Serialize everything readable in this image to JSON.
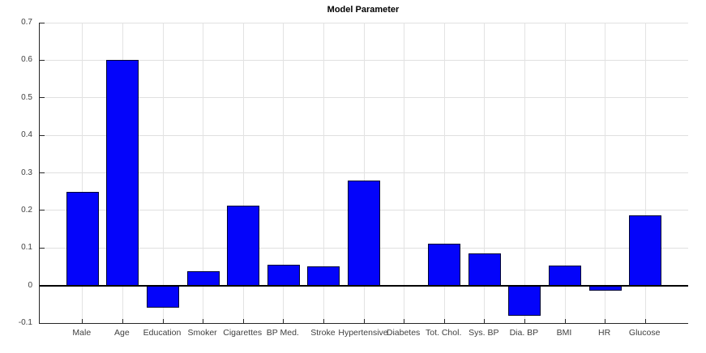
{
  "figure": {
    "background_color": "#ffffff"
  },
  "chart_data": {
    "type": "bar",
    "title": "Model Parameter",
    "xlabel": "",
    "ylabel": "",
    "categories": [
      "Male",
      "Age",
      "Education",
      "Smoker",
      "Cigarettes",
      "BP Med.",
      "Stroke",
      "Hypertensive",
      "Diabetes",
      "Tot. Chol.",
      "Sys. BP",
      "Dia. BP",
      "BMI",
      "HR",
      "Glucose"
    ],
    "values": [
      0.25,
      0.6,
      -0.06,
      0.037,
      0.212,
      0.055,
      0.052,
      0.28,
      0,
      0.111,
      0.085,
      -0.08,
      0.054,
      -0.013,
      0.187
    ],
    "ylim": [
      -0.1,
      0.7
    ],
    "yticks": [
      {
        "value": -0.1,
        "label": "-0.1"
      },
      {
        "value": 0,
        "label": "0"
      },
      {
        "value": 0.1,
        "label": "0.1"
      },
      {
        "value": 0.2,
        "label": "0.2"
      },
      {
        "value": 0.3,
        "label": "0.3"
      },
      {
        "value": 0.4,
        "label": "0.4"
      },
      {
        "value": 0.5,
        "label": "0.5"
      },
      {
        "value": 0.6,
        "label": "0.6"
      },
      {
        "value": 0.7,
        "label": "0.7"
      }
    ],
    "grid": true,
    "legend_position": "none",
    "colors": {
      "bar_face": "#0404fa",
      "bar_edge": "#000433",
      "grid": "#e0e0e0",
      "axis": "#262626",
      "tick_label": "#404040",
      "zero_baseline": "#000000",
      "title": "#000000"
    }
  }
}
